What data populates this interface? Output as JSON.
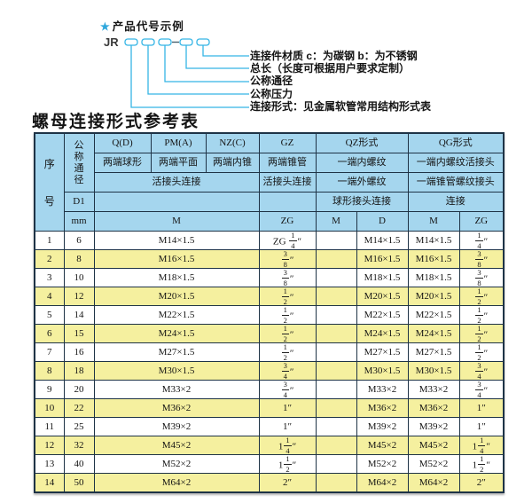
{
  "diagram": {
    "star": "★",
    "heading": "产品代号示例",
    "code_prefix": "JR",
    "labels": [
      "连接件材质  c：为碳钢  b：为不锈钢",
      "总长（长度可根据用户要求定制）",
      "公称通径",
      "公称压力",
      "连接形式：见金属软管常用结构形式表"
    ]
  },
  "title": "螺母连接形式参考表",
  "table": {
    "header": {
      "seq": "序号",
      "diameter": "公称通径",
      "d1": "D1",
      "mm": "mm",
      "q_code": "Q(D)",
      "q_desc": "两端球形",
      "pm_code": "PM(A)",
      "pm_desc": "两端平面",
      "nz_code": "NZ(C)",
      "nz_desc": "两端内锥",
      "qpn_conn": "活接头连接",
      "qpn_unit": "M",
      "gz_code": "GZ",
      "gz_desc": "两端锥管",
      "gz_conn": "活接头连接",
      "gz_unit": "ZG",
      "qz_code": "QZ形式",
      "qz_row2": "一端内螺纹",
      "qz_row3": "一端外螺纹",
      "qz_row4": "球形接头连接",
      "qz_m": "M",
      "qz_d": "D",
      "qg_code": "QG形式",
      "qg_row2": "一端内螺纹活接头",
      "qg_row3": "一端锥管螺纹接头",
      "qg_row4": "连接",
      "qg_m": "M",
      "qg_zg": "ZG"
    },
    "row_keys": [
      "no",
      "mm",
      "m",
      "zg",
      "qz_m",
      "qz_d",
      "qg_m",
      "qg_zg"
    ],
    "rows": [
      {
        "no": "1",
        "mm": "6",
        "m": "M14×1.5",
        "zg": "ZG {1/4}″",
        "qz_m": "",
        "qz_d": "M14×1.5",
        "qg_m": "M14×1.5",
        "qg_zg": "{1/4}″"
      },
      {
        "no": "2",
        "mm": "8",
        "m": "M16×1.5",
        "zg": "{3/8}″",
        "qz_m": "",
        "qz_d": "M16×1.5",
        "qg_m": "M16×1.5",
        "qg_zg": "{3/8}″"
      },
      {
        "no": "3",
        "mm": "10",
        "m": "M18×1.5",
        "zg": "{3/8}″",
        "qz_m": "",
        "qz_d": "M18×1.5",
        "qg_m": "M18×1.5",
        "qg_zg": "{3/8}″"
      },
      {
        "no": "4",
        "mm": "12",
        "m": "M20×1.5",
        "zg": "{1/2}″",
        "qz_m": "",
        "qz_d": "M20×1.5",
        "qg_m": "M20×1.5",
        "qg_zg": "{1/2}″"
      },
      {
        "no": "5",
        "mm": "14",
        "m": "M22×1.5",
        "zg": "{1/2}″",
        "qz_m": "",
        "qz_d": "M22×1.5",
        "qg_m": "M22×1.5",
        "qg_zg": "{1/2}″"
      },
      {
        "no": "6",
        "mm": "15",
        "m": "M24×1.5",
        "zg": "{1/2}″",
        "qz_m": "",
        "qz_d": "M24×1.5",
        "qg_m": "M24×1.5",
        "qg_zg": "{1/2}″"
      },
      {
        "no": "7",
        "mm": "16",
        "m": "M27×1.5",
        "zg": "{1/2}″",
        "qz_m": "",
        "qz_d": "M27×1.5",
        "qg_m": "M27×1.5",
        "qg_zg": "{1/2}″"
      },
      {
        "no": "8",
        "mm": "18",
        "m": "M30×1.5",
        "zg": "{3/4}″",
        "qz_m": "",
        "qz_d": "M30×1.5",
        "qg_m": "M30×1.5",
        "qg_zg": "{3/4}″"
      },
      {
        "no": "9",
        "mm": "20",
        "m": "M33×2",
        "zg": "{3/4}″",
        "qz_m": "",
        "qz_d": "M33×2",
        "qg_m": "M33×2",
        "qg_zg": "{3/4}″"
      },
      {
        "no": "10",
        "mm": "22",
        "m": "M36×2",
        "zg": "1″",
        "qz_m": "",
        "qz_d": "M36×2",
        "qg_m": "M36×2",
        "qg_zg": "1″"
      },
      {
        "no": "11",
        "mm": "25",
        "m": "M39×2",
        "zg": "1″",
        "qz_m": "",
        "qz_d": "M39×2",
        "qg_m": "M39×2",
        "qg_zg": "1″"
      },
      {
        "no": "12",
        "mm": "32",
        "m": "M45×2",
        "zg": "1{1/4}″",
        "qz_m": "",
        "qz_d": "M45×2",
        "qg_m": "M45×2",
        "qg_zg": "1{1/4}″"
      },
      {
        "no": "13",
        "mm": "40",
        "m": "M52×2",
        "zg": "1{1/2}″",
        "qz_m": "",
        "qz_d": "M52×2",
        "qg_m": "M52×2",
        "qg_zg": "1{1/2}″"
      },
      {
        "no": "14",
        "mm": "50",
        "m": "M64×2",
        "zg": "2″",
        "qz_m": "",
        "qz_d": "M64×2",
        "qg_m": "M64×2",
        "qg_zg": "2″"
      }
    ]
  },
  "colors": {
    "header_bg": "#a5d6ee",
    "row_alt_bg": "#f5f09f",
    "border": "#1e3346",
    "accent": "#35b5e5",
    "star": "#2fa7dc",
    "ink": "#141414"
  }
}
